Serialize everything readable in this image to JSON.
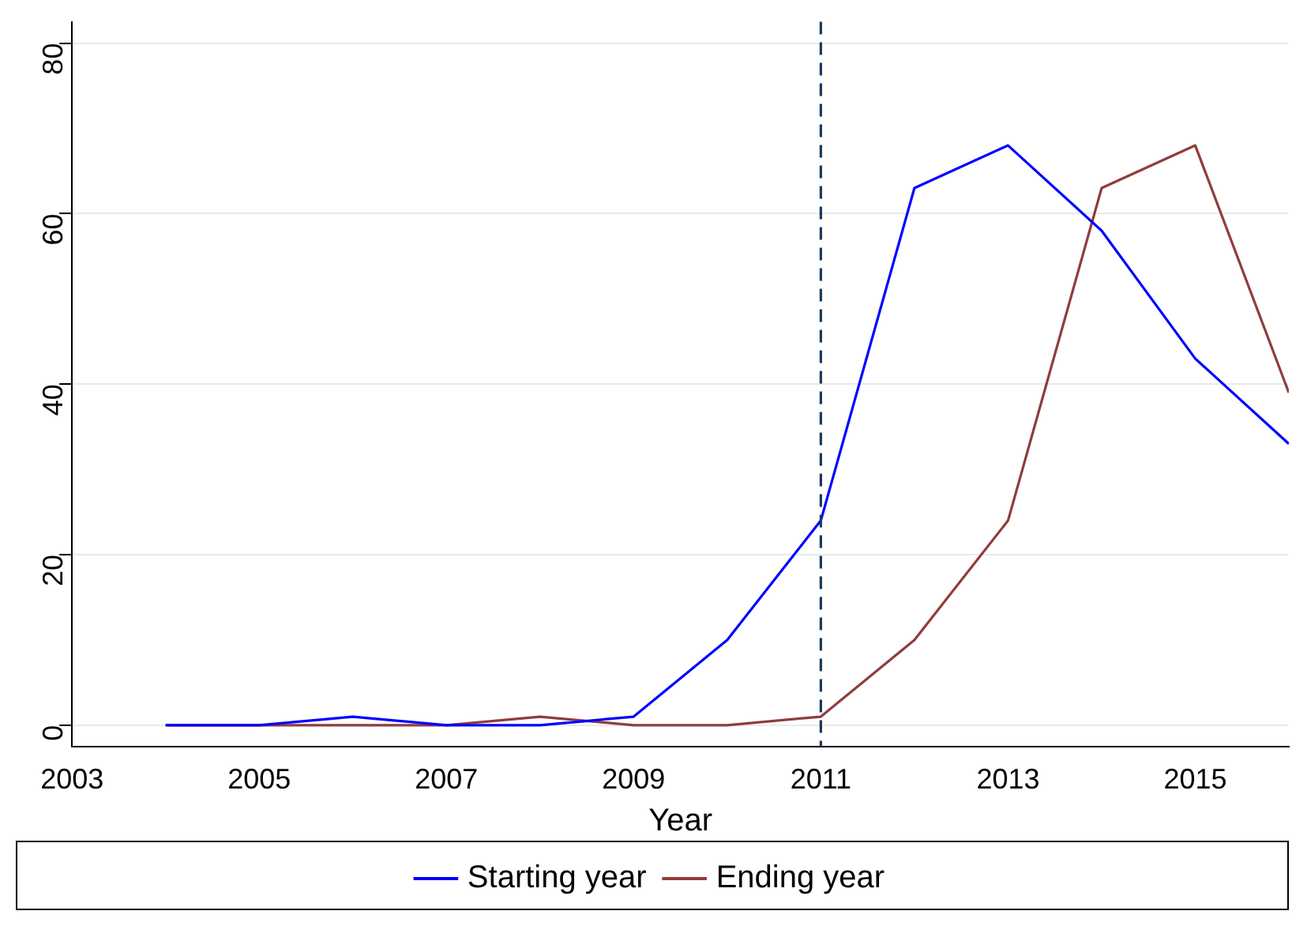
{
  "chart_data": {
    "type": "line",
    "xlabel": "Year",
    "x": [
      2004,
      2005,
      2006,
      2007,
      2008,
      2009,
      2010,
      2011,
      2012,
      2013,
      2014,
      2015,
      2016
    ],
    "series": [
      {
        "name": "Starting year",
        "color": "#0000ff",
        "values": [
          0,
          0,
          1,
          0,
          0,
          1,
          10,
          24,
          63,
          68,
          58,
          43,
          33
        ]
      },
      {
        "name": "Ending year",
        "color": "#903c3c",
        "values": [
          0,
          0,
          0,
          0,
          1,
          0,
          0,
          1,
          10,
          24,
          63,
          68,
          39
        ]
      }
    ],
    "xlim": [
      2003,
      2016
    ],
    "xticks": [
      2003,
      2005,
      2007,
      2009,
      2011,
      2013,
      2015
    ],
    "ylim": [
      -2.5,
      82.5
    ],
    "yticks": [
      0,
      20,
      40,
      60,
      80
    ],
    "ref_lines": [
      {
        "axis": "x",
        "value": 2011,
        "color": "#1a3a5c",
        "line_style": "dashed"
      }
    ],
    "grid": "y",
    "legend": "bottom",
    "marker": "none",
    "line_style": "solid"
  }
}
